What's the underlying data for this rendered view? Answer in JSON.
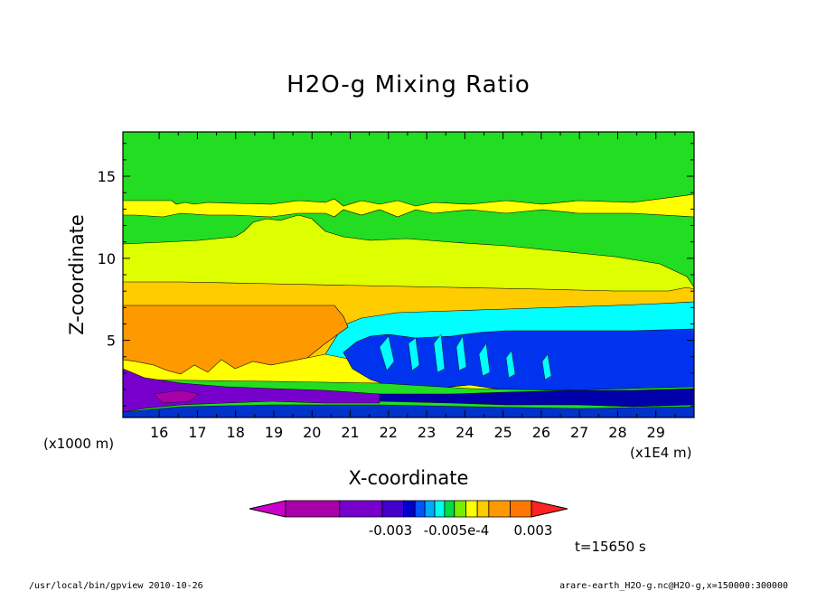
{
  "chart_data": {
    "type": "contour",
    "title": "H2O-g Mixing Ratio",
    "xlabel": "X-coordinate",
    "ylabel": "Z-coordinate",
    "x_unit_left": "(x1000 m)",
    "x_unit_right": "(x1E4 m)",
    "x_ticks": [
      "16",
      "17",
      "18",
      "19",
      "20",
      "21",
      "22",
      "23",
      "24",
      "25",
      "26",
      "27",
      "28",
      "29"
    ],
    "y_ticks": [
      "5",
      "10",
      "15"
    ],
    "xlim": [
      15.05,
      30.0
    ],
    "ylim": [
      0.3,
      17.7
    ],
    "grid": false,
    "colorbar": {
      "labels": [
        "-0.003",
        "-0.005e-4",
        "0.003"
      ],
      "colors": [
        "#cc00cc",
        "#aa00aa",
        "#7700cc",
        "#4400cc",
        "#0000cc",
        "#0055ff",
        "#00aaff",
        "#00ffee",
        "#00dd44",
        "#77ee00",
        "#ffff00",
        "#ffcc00",
        "#ff9900",
        "#ff7700",
        "#ff2222"
      ]
    },
    "bands": [
      {
        "name": "upper-green",
        "color": "#22dd22",
        "z_range": [
          14.0,
          17.7
        ]
      },
      {
        "name": "upper-yellow",
        "color": "#ffff00",
        "z_range": [
          12.8,
          14.0
        ]
      },
      {
        "name": "mid-green",
        "color": "#22dd22",
        "z_range": [
          10.8,
          12.8
        ]
      },
      {
        "name": "yellow-green",
        "color": "#ddff00",
        "z_range": [
          8.5,
          10.8
        ]
      },
      {
        "name": "light-orange",
        "color": "#ffcc00",
        "z_range": [
          7.2,
          8.5
        ]
      },
      {
        "name": "orange-region",
        "color": "#ff9900",
        "z_range": [
          2.5,
          7.2
        ],
        "x_range": [
          15.05,
          20.8
        ]
      },
      {
        "name": "cyan-region",
        "color": "#00ffff",
        "z_range": [
          2.0,
          6.5
        ],
        "x_range": [
          21.5,
          30.0
        ]
      },
      {
        "name": "blue-region",
        "color": "#0000ff",
        "z_range": [
          1.5,
          5.3
        ],
        "x_range": [
          24.5,
          30.0
        ]
      },
      {
        "name": "purple-low",
        "color": "#7700cc",
        "z_range": [
          0.3,
          2.0
        ],
        "x_range": [
          15.05,
          21.0
        ]
      }
    ],
    "time_label": "t=15650 s"
  },
  "footer": {
    "left": "/usr/local/bin/gpview  2010-10-26",
    "right": "arare-earth_H2O-g.nc@H2O-g,x=150000:300000"
  }
}
